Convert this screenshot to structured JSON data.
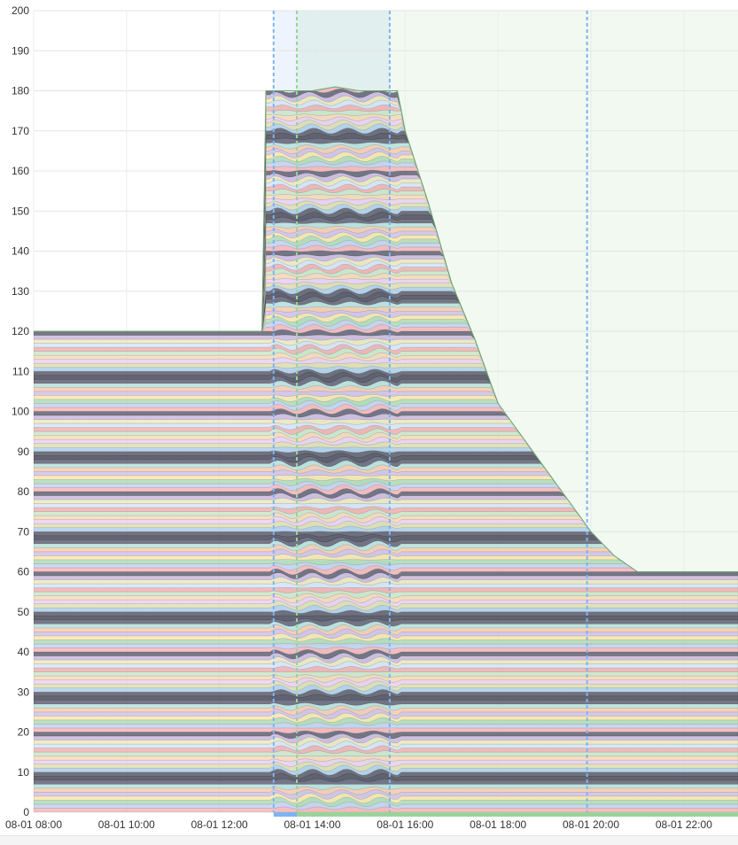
{
  "chart_data": {
    "type": "area",
    "stacked": true,
    "title": "",
    "xlabel": "",
    "ylabel": "",
    "ylim": [
      0,
      200
    ],
    "yticks": [
      0,
      10,
      20,
      30,
      40,
      50,
      60,
      70,
      80,
      90,
      100,
      110,
      120,
      130,
      140,
      150,
      160,
      170,
      180,
      190,
      200
    ],
    "xlim": [
      "08-01 08:00",
      "08-01 23:10"
    ],
    "xticks": [
      "08-01 08:00",
      "08-01 10:00",
      "08-01 12:00",
      "08-01 14:00",
      "08-01 16:00",
      "08-01 18:00",
      "08-01 20:00",
      "08-01 22:00"
    ],
    "grid": true,
    "legend": "none",
    "total_series": {
      "x": [
        "08:00",
        "12:55",
        "13:00",
        "14:00",
        "14:30",
        "15:00",
        "15:50",
        "16:00",
        "16:30",
        "17:00",
        "17:30",
        "18:00",
        "18:30",
        "19:00",
        "19:30",
        "20:00",
        "20:30",
        "21:00",
        "22:00",
        "23:10"
      ],
      "y": [
        120,
        120,
        180,
        180,
        181,
        180,
        180,
        170,
        152,
        132,
        118,
        102,
        94,
        86,
        78,
        70,
        64,
        60,
        60,
        60
      ]
    },
    "highlight_regions": [
      {
        "start": "13:10",
        "end": "15:40",
        "color": "#7eb3f0"
      },
      {
        "start": "13:40",
        "end": "23:10",
        "color": "#9ad39a"
      }
    ],
    "marker_lines": [
      {
        "at": "13:10",
        "color": "#7eb3f0"
      },
      {
        "at": "13:40",
        "color": "#9ad39a"
      },
      {
        "at": "15:40",
        "color": "#7eb3f0"
      },
      {
        "at": "19:55",
        "color": "#7eb3f0"
      }
    ]
  }
}
